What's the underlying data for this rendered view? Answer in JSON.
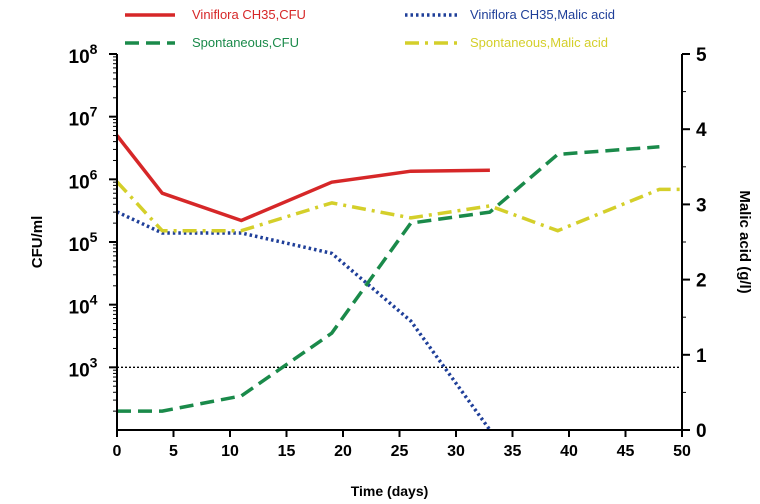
{
  "chart_data": {
    "type": "line",
    "title": "",
    "xlabel": "Time (days)",
    "ylabel_left": "CFU/ml",
    "ylabel_right": "Malic acid (g/l)",
    "x_ticks": [
      "0",
      "5",
      "10",
      "15",
      "20",
      "25",
      "30",
      "35",
      "40",
      "45",
      "50"
    ],
    "xlim": [
      0,
      50
    ],
    "y_left_scale": "log",
    "y_left_ticks": [
      {
        "base": "10",
        "exp": "3",
        "value": 1000
      },
      {
        "base": "10",
        "exp": "4",
        "value": 10000
      },
      {
        "base": "10",
        "exp": "5",
        "value": 100000
      },
      {
        "base": "10",
        "exp": "6",
        "value": 1000000
      },
      {
        "base": "10",
        "exp": "7",
        "value": 10000000
      },
      {
        "base": "10",
        "exp": "8",
        "value": 100000000
      }
    ],
    "y_left_range": [
      100,
      100000000
    ],
    "y_right_ticks": [
      "0",
      "1",
      "2",
      "3",
      "4",
      "5"
    ],
    "ylim_right": [
      0,
      5
    ],
    "reference_line": {
      "value": 1000,
      "axis": "left",
      "style": "dotted",
      "color": "#000000"
    },
    "series": [
      {
        "name": "Viniflora CH35,CFU",
        "axis": "left",
        "color": "#d62728",
        "dash": "solid",
        "x": [
          0,
          4,
          11,
          19,
          26,
          33
        ],
        "y": [
          5000000,
          600000,
          220000,
          900000,
          1350000,
          1400000
        ]
      },
      {
        "name": "Viniflora CH35,Malic acid",
        "axis": "right",
        "color": "#1f3f99",
        "dash": "dotted",
        "x": [
          0,
          4,
          11,
          19,
          26,
          33
        ],
        "y": [
          2.9,
          2.62,
          2.62,
          2.35,
          1.45,
          0
        ]
      },
      {
        "name": "Spontaneous,CFU",
        "axis": "left",
        "color": "#1a8a4a",
        "dash": "dashed",
        "x": [
          0,
          4,
          11,
          19,
          26,
          33,
          39,
          48
        ],
        "y": [
          200,
          200,
          350,
          3500,
          200000,
          300000,
          2500000,
          3300000
        ]
      },
      {
        "name": "Spontaneous,Malic acid",
        "axis": "right",
        "color": "#d4cf2a",
        "dash": "dashdot",
        "x": [
          0,
          4,
          11,
          19,
          26,
          33,
          39,
          48,
          50
        ],
        "y": [
          3.3,
          2.65,
          2.65,
          3.02,
          2.82,
          2.98,
          2.65,
          3.2,
          3.2
        ]
      }
    ],
    "legend": {
      "placement": "top",
      "columns": 2
    }
  }
}
